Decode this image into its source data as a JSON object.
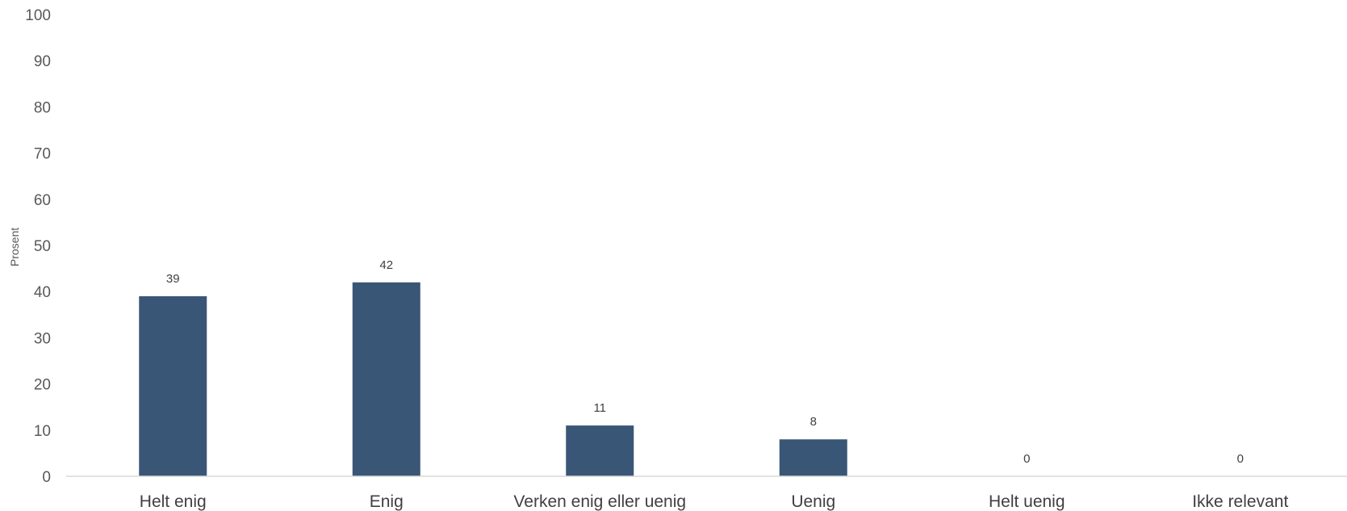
{
  "chart_data": {
    "type": "bar",
    "title": "",
    "xlabel": "",
    "ylabel": "Prosent",
    "categories": [
      "Helt enig",
      "Enig",
      "Verken enig eller uenig",
      "Uenig",
      "Helt uenig",
      "Ikke relevant"
    ],
    "values": [
      39,
      42,
      11,
      8,
      0,
      0
    ],
    "data_labels": [
      "39",
      "42",
      "11",
      "8",
      "0",
      "0"
    ],
    "ylim": [
      0,
      100
    ],
    "yticks": [
      0,
      10,
      20,
      30,
      40,
      50,
      60,
      70,
      80,
      90,
      100
    ],
    "grid": false,
    "legend": "none",
    "bar_color": "#3a5676",
    "axis_color": "#d9d9d9"
  }
}
